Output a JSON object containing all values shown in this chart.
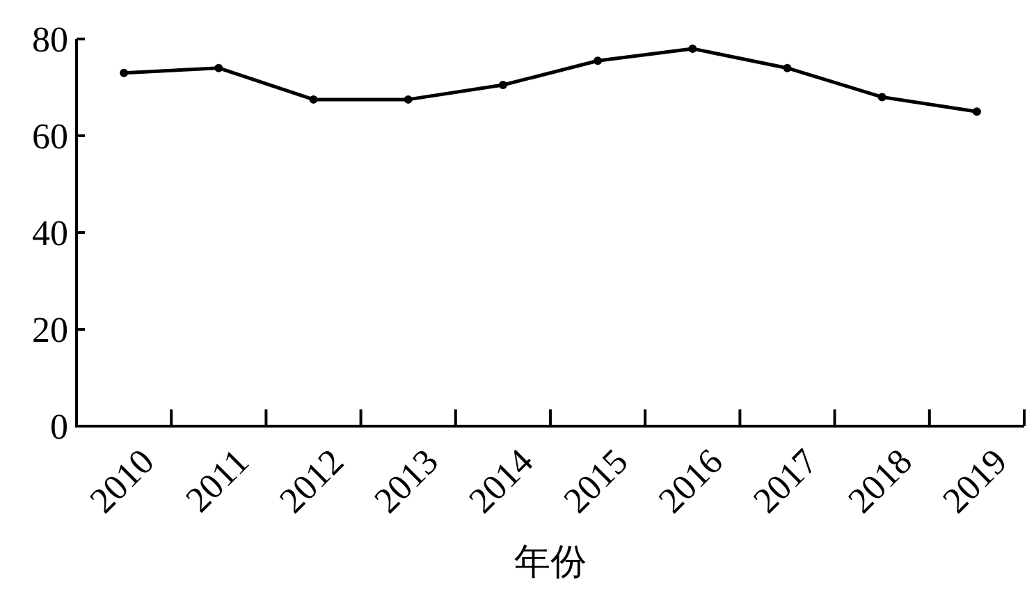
{
  "chart_data": {
    "type": "line",
    "xlabel": "年份",
    "categories": [
      "2010",
      "2011",
      "2012",
      "2013",
      "2014",
      "2015",
      "2016",
      "2017",
      "2018",
      "2019"
    ],
    "series": [
      {
        "color": "#000000",
        "values": [
          73,
          74,
          67.5,
          67.5,
          70.5,
          75.5,
          78,
          74,
          68,
          65
        ]
      }
    ],
    "ylim": [
      0,
      80
    ],
    "yticks": [
      0,
      20,
      40,
      60,
      80
    ],
    "marker": "circle",
    "line_style": "solid"
  }
}
